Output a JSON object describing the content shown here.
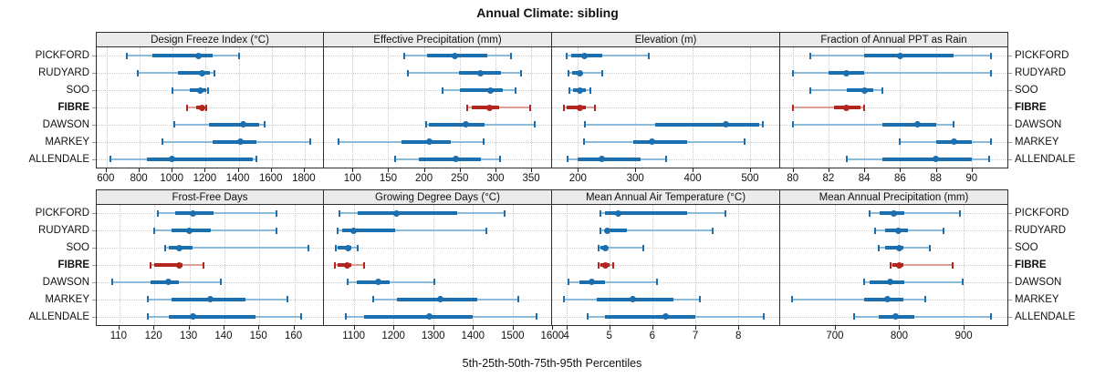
{
  "title": "Annual Climate: sibling",
  "caption": "5th-25th-50th-75th-95th Percentiles",
  "colors": {
    "normal_main": "#1b6fae",
    "normal_light": "#8cbbdb",
    "highlight_main": "#b3261f",
    "highlight_light": "#dda099",
    "strip_bg": "#ebebeb",
    "grid": "#c6c6c6",
    "border": "#2e2e2e"
  },
  "chart_data": {
    "type": "dotplot",
    "subtype": "percentile-whisker-trellis",
    "percentile_labels": [
      "5th",
      "25th",
      "50th",
      "75th",
      "95th"
    ],
    "stations": [
      "PICKFORD",
      "RUDYARD",
      "SOO",
      "FIBRE",
      "DAWSON",
      "MARKEY",
      "ALLENDALE"
    ],
    "highlight_station": "FIBRE",
    "panels": [
      {
        "title": "Design Freeze Index (°C)",
        "row": 1,
        "xlim": [
          540,
          1911
        ],
        "ticks": [
          600,
          800,
          1000,
          1200,
          1400,
          1600,
          1800
        ],
        "values": {
          "PICKFORD": [
            725,
            875,
            1155,
            1240,
            1405
          ],
          "RUDYARD": [
            790,
            1030,
            1180,
            1225,
            1255
          ],
          "SOO": [
            1000,
            1105,
            1170,
            1205,
            1215
          ],
          "FIBRE": [
            1090,
            1140,
            1180,
            1195,
            1205
          ],
          "DAWSON": [
            1010,
            1220,
            1430,
            1525,
            1555
          ],
          "MARKEY": [
            940,
            1240,
            1410,
            1510,
            1835
          ],
          "ALLENDALE": [
            625,
            845,
            995,
            1485,
            1505
          ]
        }
      },
      {
        "title": "Effective Precipitation (mm)",
        "row": 1,
        "xlim": [
          60,
          378
        ],
        "ticks": [
          100,
          150,
          200,
          250,
          300,
          350
        ],
        "values": {
          "PICKFORD": [
            172,
            204,
            243,
            289,
            322
          ],
          "RUDYARD": [
            177,
            249,
            279,
            308,
            336
          ],
          "SOO": [
            226,
            250,
            293,
            310,
            328
          ],
          "FIBRE": [
            260,
            267,
            292,
            305,
            348
          ],
          "DAWSON": [
            203,
            207,
            258,
            285,
            355
          ],
          "MARKEY": [
            80,
            168,
            207,
            237,
            283
          ],
          "ALLENDALE": [
            160,
            193,
            245,
            280,
            307
          ]
        }
      },
      {
        "title": "Elevation (m)",
        "row": 1,
        "xlim": [
          155,
          551
        ],
        "ticks": [
          200,
          300,
          400,
          500
        ],
        "values": {
          "PICKFORD": [
            180,
            188,
            212,
            242,
            324
          ],
          "RUDYARD": [
            183,
            190,
            203,
            208,
            243
          ],
          "SOO": [
            186,
            192,
            204,
            214,
            221
          ],
          "FIBRE": [
            176,
            180,
            203,
            214,
            230
          ],
          "DAWSON": [
            212,
            334,
            458,
            516,
            522
          ],
          "MARKEY": [
            211,
            296,
            329,
            390,
            491
          ],
          "ALLENDALE": [
            182,
            200,
            242,
            310,
            354
          ]
        }
      },
      {
        "title": "Fraction of Annual PPT as Rain",
        "row": 1,
        "xlim": [
          79.3,
          92.0
        ],
        "ticks": [
          80,
          82,
          84,
          86,
          88,
          90
        ],
        "values": {
          "PICKFORD": [
            81,
            84,
            86,
            89,
            91.1
          ],
          "RUDYARD": [
            80,
            82,
            83,
            84,
            91.1
          ],
          "SOO": [
            81,
            83,
            84,
            84.5,
            85
          ],
          "FIBRE": [
            80,
            82.3,
            83,
            83.8,
            84
          ],
          "DAWSON": [
            80,
            85,
            87,
            88,
            89
          ],
          "MARKEY": [
            86,
            88,
            89,
            90,
            91.1
          ],
          "ALLENDALE": [
            83,
            85,
            88,
            90,
            91
          ]
        }
      },
      {
        "title": "Frost-Free Days",
        "row": 2,
        "xlim": [
          103.5,
          168.2
        ],
        "ticks": [
          110,
          120,
          130,
          140,
          150,
          160
        ],
        "values": {
          "PICKFORD": [
            121,
            126,
            131,
            137,
            155
          ],
          "RUDYARD": [
            120,
            125,
            130,
            136,
            155
          ],
          "SOO": [
            123,
            124,
            127,
            131,
            164
          ],
          "FIBRE": [
            119,
            120,
            127,
            128,
            134
          ],
          "DAWSON": [
            108,
            119,
            124,
            127,
            139
          ],
          "MARKEY": [
            118,
            125,
            136,
            146,
            158
          ],
          "ALLENDALE": [
            118,
            124,
            131,
            149,
            162
          ]
        }
      },
      {
        "title": "Growing Degree Days (°C)",
        "row": 2,
        "xlim": [
          1025,
          1597
        ],
        "ticks": [
          1100,
          1200,
          1300,
          1400,
          1500,
          1600
        ],
        "values": {
          "PICKFORD": [
            1065,
            1110,
            1208,
            1360,
            1480
          ],
          "RUDYARD": [
            1060,
            1070,
            1100,
            1205,
            1435
          ],
          "SOO": [
            1055,
            1060,
            1085,
            1095,
            1110
          ],
          "FIBRE": [
            1053,
            1060,
            1083,
            1095,
            1125
          ],
          "DAWSON": [
            1085,
            1108,
            1162,
            1190,
            1303
          ],
          "MARKEY": [
            1150,
            1208,
            1317,
            1410,
            1515
          ],
          "ALLENDALE": [
            1080,
            1125,
            1290,
            1400,
            1560
          ]
        }
      },
      {
        "title": "Mean Annual Air Temperature (°C)",
        "row": 2,
        "xlim": [
          3.67,
          8.95
        ],
        "ticks": [
          4,
          5,
          6,
          7,
          8
        ],
        "values": {
          "PICKFORD": [
            4.8,
            4.9,
            5.2,
            6.8,
            7.7
          ],
          "RUDYARD": [
            4.8,
            4.9,
            4.95,
            5.4,
            7.4
          ],
          "SOO": [
            4.75,
            4.8,
            4.9,
            4.95,
            5.8
          ],
          "FIBRE": [
            4.75,
            4.8,
            4.9,
            5.0,
            5.1
          ],
          "DAWSON": [
            4.05,
            4.3,
            4.6,
            4.9,
            6.1
          ],
          "MARKEY": [
            3.95,
            4.7,
            5.55,
            6.5,
            7.1
          ],
          "ALLENDALE": [
            4.5,
            4.9,
            6.3,
            7.0,
            8.6
          ]
        }
      },
      {
        "title": "Mean Annual Precipitation (mm)",
        "row": 2,
        "xlim": [
          615,
          968
        ],
        "ticks": [
          700,
          800,
          900
        ],
        "values": {
          "PICKFORD": [
            754,
            770,
            792,
            808,
            894
          ],
          "RUDYARD": [
            762,
            778,
            799,
            814,
            869
          ],
          "SOO": [
            768,
            778,
            800,
            806,
            848
          ],
          "FIBRE": [
            786,
            790,
            800,
            806,
            883
          ],
          "DAWSON": [
            746,
            754,
            786,
            808,
            899
          ],
          "MARKEY": [
            634,
            745,
            781,
            806,
            840
          ],
          "ALLENDALE": [
            730,
            768,
            795,
            824,
            942
          ]
        }
      }
    ]
  }
}
